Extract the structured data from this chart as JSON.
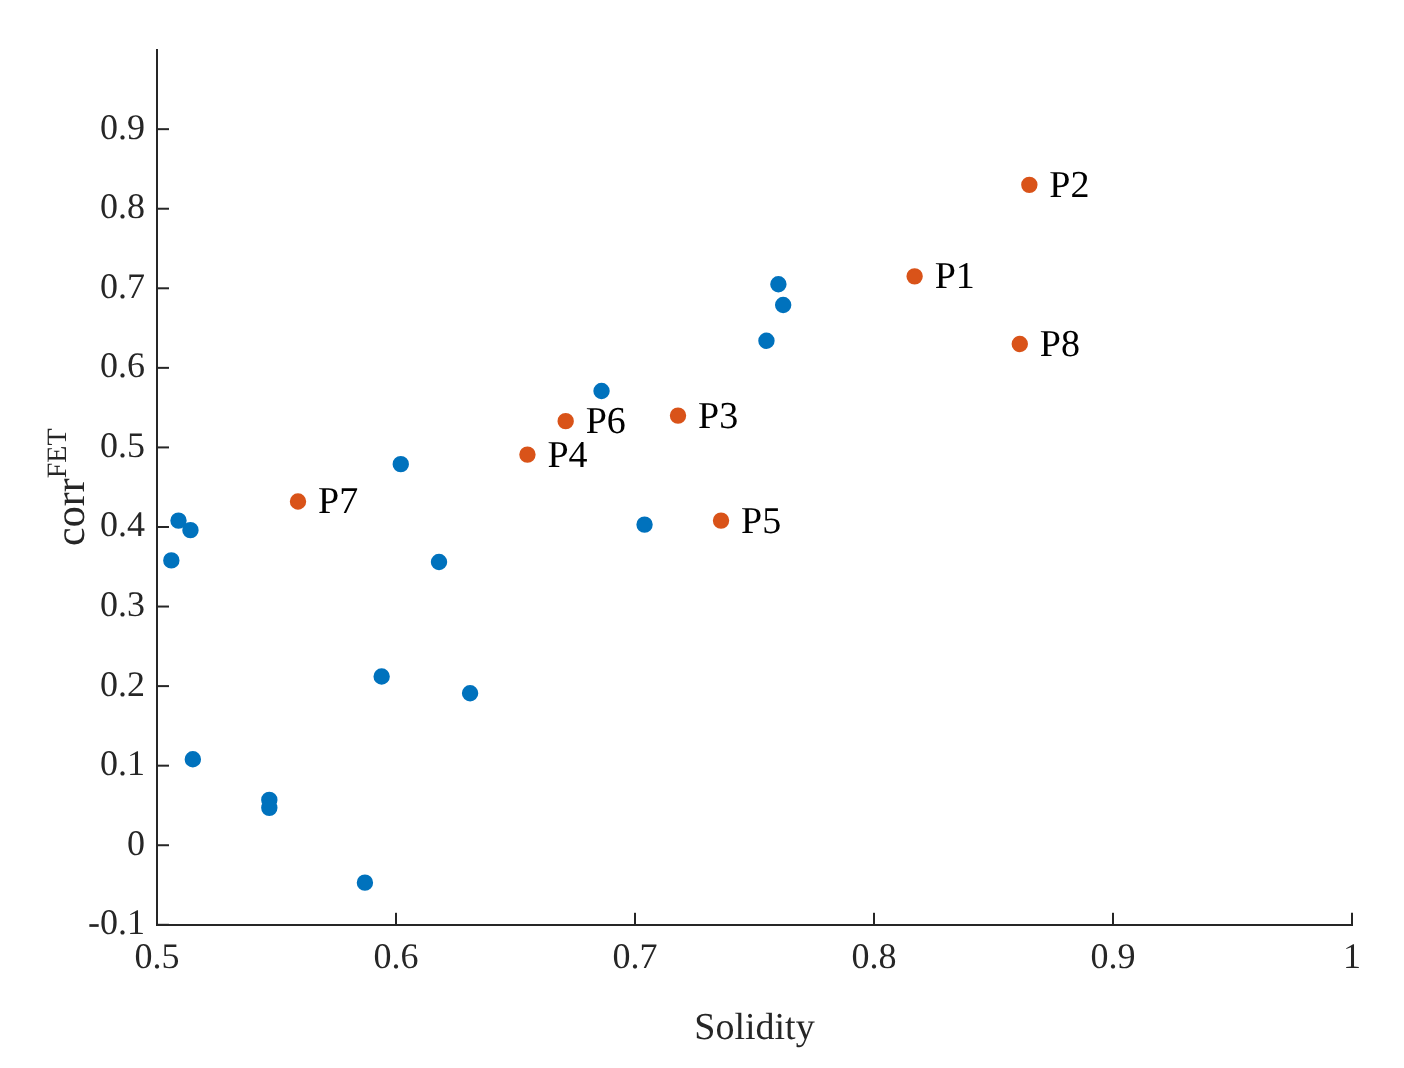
{
  "chart_data": {
    "type": "scatter",
    "xlabel": "Solidity",
    "ylabel": "corr$^{FET}$",
    "xlim": [
      0.5,
      1
    ],
    "ylim": [
      -0.1,
      1.0
    ],
    "xticks": [
      0.5,
      0.6,
      0.7,
      0.8,
      0.9,
      1
    ],
    "yticks": [
      -0.1,
      0,
      0.1,
      0.2,
      0.3,
      0.4,
      0.5,
      0.6,
      0.7,
      0.8,
      0.9
    ],
    "grid": false,
    "marker": "circle",
    "series": [
      {
        "color": "#0072bd",
        "x": [
          0.76,
          0.762,
          0.755,
          0.686,
          0.602,
          0.509,
          0.514,
          0.506,
          0.618,
          0.704,
          0.594,
          0.631,
          0.515,
          0.547,
          0.547,
          0.587
        ],
        "values": [
          0.705,
          0.679,
          0.634,
          0.571,
          0.479,
          0.408,
          0.396,
          0.358,
          0.356,
          0.403,
          0.212,
          0.191,
          0.108,
          0.057,
          0.047,
          -0.047
        ]
      },
      {
        "color": "#d95319",
        "x": [
          0.865,
          0.817,
          0.861,
          0.718,
          0.671,
          0.655,
          0.736,
          0.559
        ],
        "values": [
          0.83,
          0.715,
          0.63,
          0.54,
          0.533,
          0.491,
          0.408,
          0.432
        ]
      }
    ],
    "annotations": [
      {
        "text": "P1",
        "x": 0.817,
        "y": 0.715
      },
      {
        "text": "P2",
        "x": 0.865,
        "y": 0.83
      },
      {
        "text": "P3",
        "x": 0.718,
        "y": 0.54
      },
      {
        "text": "P4",
        "x": 0.655,
        "y": 0.491
      },
      {
        "text": "P5",
        "x": 0.736,
        "y": 0.408
      },
      {
        "text": "P6",
        "x": 0.671,
        "y": 0.533
      },
      {
        "text": "P7",
        "x": 0.559,
        "y": 0.432
      },
      {
        "text": "P8",
        "x": 0.861,
        "y": 0.63
      }
    ]
  }
}
